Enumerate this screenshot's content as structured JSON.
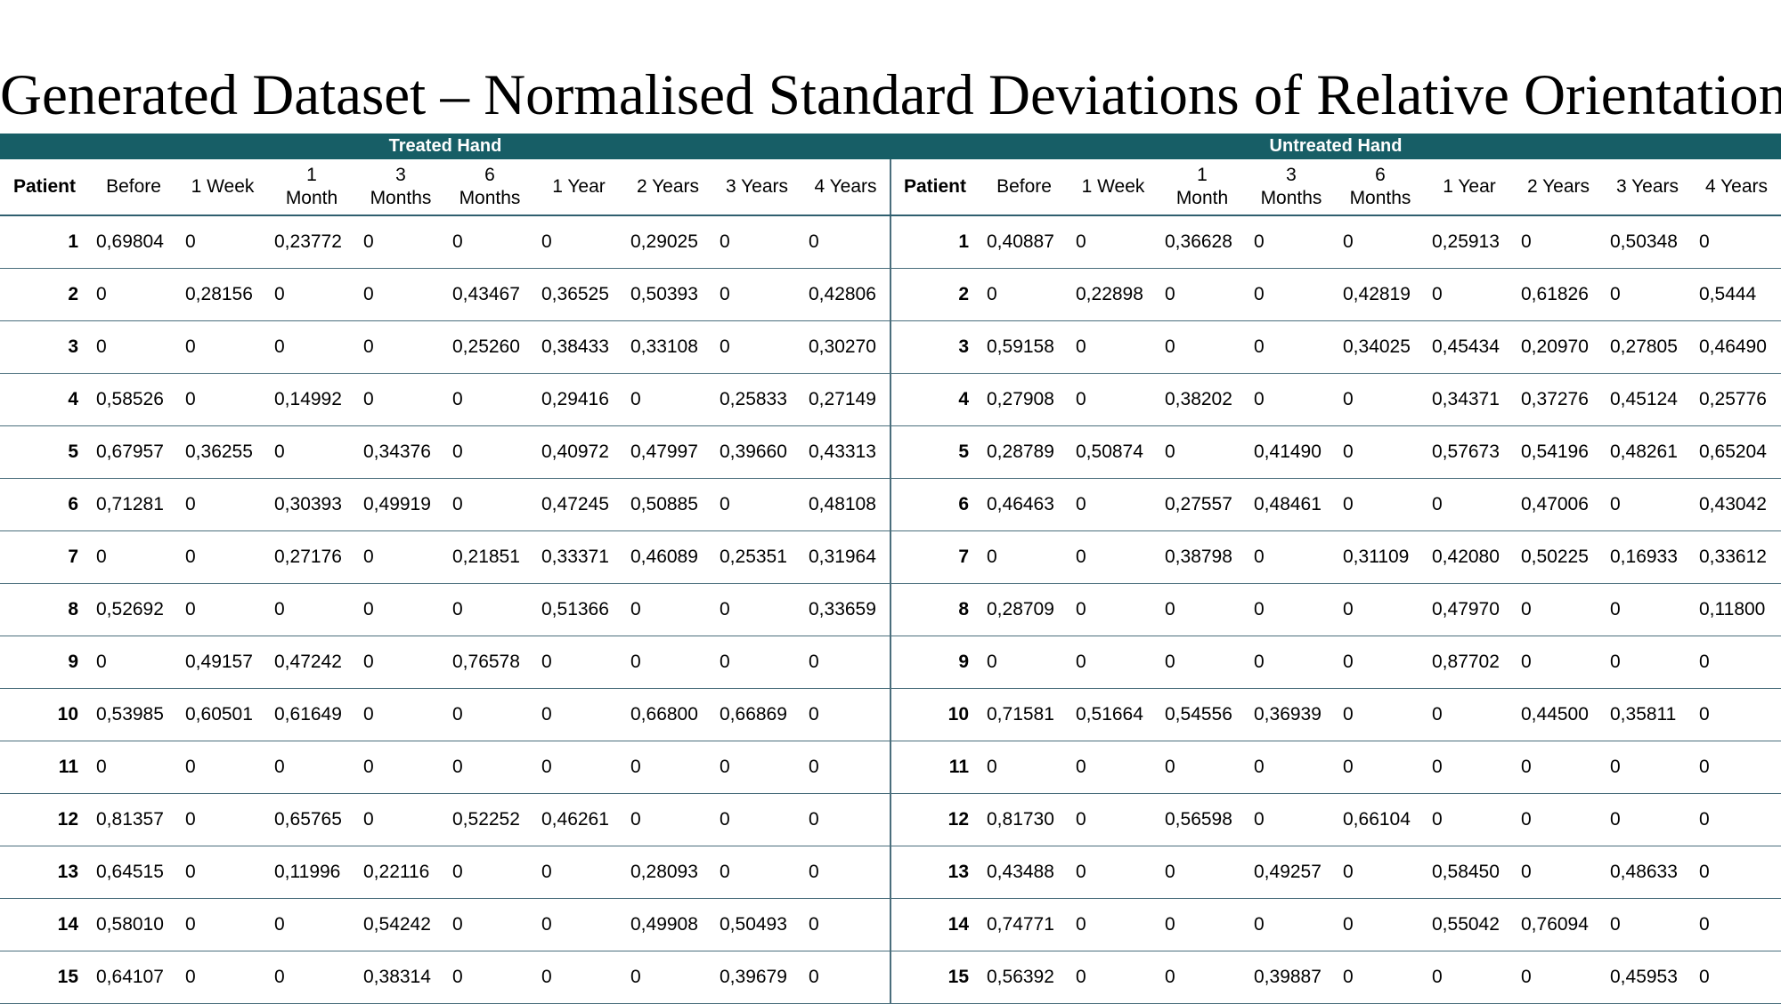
{
  "title": "Generated Dataset – Normalised Standard Deviations of Relative Orientations",
  "columns": [
    [
      "Patient"
    ],
    [
      "Before"
    ],
    [
      "1 Week"
    ],
    [
      "1",
      "Month"
    ],
    [
      "3",
      "Months"
    ],
    [
      "6",
      "Months"
    ],
    [
      "1 Year"
    ],
    [
      "2 Years"
    ],
    [
      "3 Years"
    ],
    [
      "4 Years"
    ]
  ],
  "panels": [
    {
      "id": "treated",
      "title": "Treated Hand",
      "rows": [
        [
          "1",
          "0,69804",
          "0",
          "0,23772",
          "0",
          "0",
          "0",
          "0,29025",
          "0",
          "0"
        ],
        [
          "2",
          "0",
          "0,28156",
          "0",
          "0",
          "0,43467",
          "0,36525",
          "0,50393",
          "0",
          "0,42806"
        ],
        [
          "3",
          "0",
          "0",
          "0",
          "0",
          "0,25260",
          "0,38433",
          "0,33108",
          "0",
          "0,30270"
        ],
        [
          "4",
          "0,58526",
          "0",
          "0,14992",
          "0",
          "0",
          "0,29416",
          "0",
          "0,25833",
          "0,27149"
        ],
        [
          "5",
          "0,67957",
          "0,36255",
          "0",
          "0,34376",
          "0",
          "0,40972",
          "0,47997",
          "0,39660",
          "0,43313"
        ],
        [
          "6",
          "0,71281",
          "0",
          "0,30393",
          "0,49919",
          "0",
          "0,47245",
          "0,50885",
          "0",
          "0,48108"
        ],
        [
          "7",
          "0",
          "0",
          "0,27176",
          "0",
          "0,21851",
          "0,33371",
          "0,46089",
          "0,25351",
          "0,31964"
        ],
        [
          "8",
          "0,52692",
          "0",
          "0",
          "0",
          "0",
          "0,51366",
          "0",
          "0",
          "0,33659"
        ],
        [
          "9",
          "0",
          "0,49157",
          "0,47242",
          "0",
          "0,76578",
          "0",
          "0",
          "0",
          "0"
        ],
        [
          "10",
          "0,53985",
          "0,60501",
          "0,61649",
          "0",
          "0",
          "0",
          "0,66800",
          "0,66869",
          "0"
        ],
        [
          "11",
          "0",
          "0",
          "0",
          "0",
          "0",
          "0",
          "0",
          "0",
          "0"
        ],
        [
          "12",
          "0,81357",
          "0",
          "0,65765",
          "0",
          "0,52252",
          "0,46261",
          "0",
          "0",
          "0"
        ],
        [
          "13",
          "0,64515",
          "0",
          "0,11996",
          "0,22116",
          "0",
          "0",
          "0,28093",
          "0",
          "0"
        ],
        [
          "14",
          "0,58010",
          "0",
          "0",
          "0,54242",
          "0",
          "0",
          "0,49908",
          "0,50493",
          "0"
        ],
        [
          "15",
          "0,64107",
          "0",
          "0",
          "0,38314",
          "0",
          "0",
          "0",
          "0,39679",
          "0"
        ]
      ]
    },
    {
      "id": "untreated",
      "title": "Untreated Hand",
      "rows": [
        [
          "1",
          "0,40887",
          "0",
          "0,36628",
          "0",
          "0",
          "0,25913",
          "0",
          "0,50348",
          "0"
        ],
        [
          "2",
          "0",
          "0,22898",
          "0",
          "0",
          "0,42819",
          "0",
          "0,61826",
          "0",
          "0,5444"
        ],
        [
          "3",
          "0,59158",
          "0",
          "0",
          "0",
          "0,34025",
          "0,45434",
          "0,20970",
          "0,27805",
          "0,46490"
        ],
        [
          "4",
          "0,27908",
          "0",
          "0,38202",
          "0",
          "0",
          "0,34371",
          "0,37276",
          "0,45124",
          "0,25776"
        ],
        [
          "5",
          "0,28789",
          "0,50874",
          "0",
          "0,41490",
          "0",
          "0,57673",
          "0,54196",
          "0,48261",
          "0,65204"
        ],
        [
          "6",
          "0,46463",
          "0",
          "0,27557",
          "0,48461",
          "0",
          "0",
          "0,47006",
          "0",
          "0,43042"
        ],
        [
          "7",
          "0",
          "0",
          "0,38798",
          "0",
          "0,31109",
          "0,42080",
          "0,50225",
          "0,16933",
          "0,33612"
        ],
        [
          "8",
          "0,28709",
          "0",
          "0",
          "0",
          "0",
          "0,47970",
          "0",
          "0",
          "0,11800"
        ],
        [
          "9",
          "0",
          "0",
          "0",
          "0",
          "0",
          "0,87702",
          "0",
          "0",
          "0"
        ],
        [
          "10",
          "0,71581",
          "0,51664",
          "0,54556",
          "0,36939",
          "0",
          "0",
          "0,44500",
          "0,35811",
          "0"
        ],
        [
          "11",
          "0",
          "0",
          "0",
          "0",
          "0",
          "0",
          "0",
          "0",
          "0"
        ],
        [
          "12",
          "0,81730",
          "0",
          "0,56598",
          "0",
          "0,66104",
          "0",
          "0",
          "0",
          "0"
        ],
        [
          "13",
          "0,43488",
          "0",
          "0",
          "0,49257",
          "0",
          "0,58450",
          "0",
          "0,48633",
          "0"
        ],
        [
          "14",
          "0,74771",
          "0",
          "0",
          "0",
          "0",
          "0,55042",
          "0,76094",
          "0",
          "0"
        ],
        [
          "15",
          "0,56392",
          "0",
          "0",
          "0,39887",
          "0",
          "0",
          "0",
          "0,45953",
          "0"
        ]
      ]
    }
  ]
}
